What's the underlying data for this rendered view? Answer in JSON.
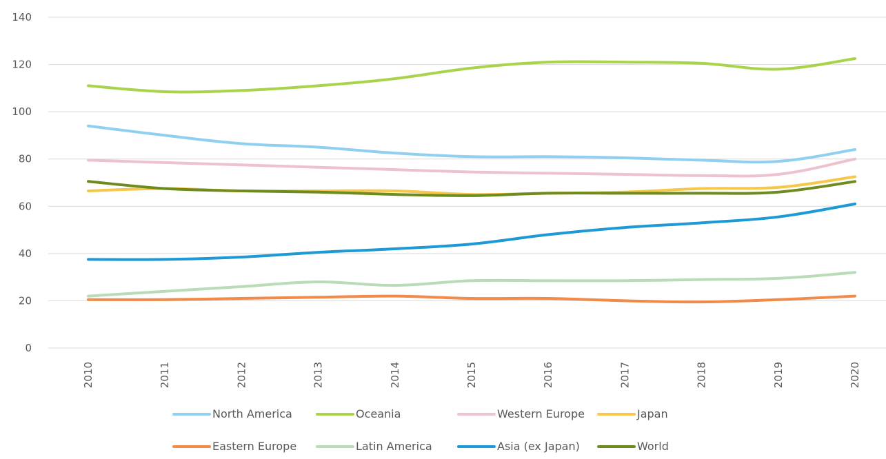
{
  "chart_data": {
    "type": "line",
    "title": "",
    "xlabel": "",
    "ylabel": "",
    "ylim": [
      0,
      140
    ],
    "yticks": [
      0,
      20,
      40,
      60,
      80,
      100,
      120,
      140
    ],
    "grid": "horizontal",
    "legend_position": "bottom",
    "categories": [
      "2010",
      "2011",
      "2012",
      "2013",
      "2014",
      "2015",
      "2016",
      "2017",
      "2018",
      "2019",
      "2020"
    ],
    "series": [
      {
        "name": "North America",
        "color": "#8fd0f0",
        "values": [
          94,
          90,
          86.5,
          85,
          82.5,
          81,
          81,
          80.5,
          79.5,
          79,
          84
        ]
      },
      {
        "name": "Oceania",
        "color": "#a9d34b",
        "values": [
          111,
          108.5,
          109,
          111,
          114,
          118.5,
          121,
          121,
          120.5,
          118,
          122.5
        ]
      },
      {
        "name": "Western Europe",
        "color": "#ecc2cc",
        "values": [
          79.5,
          78.5,
          77.5,
          76.5,
          75.5,
          74.5,
          74,
          73.5,
          73,
          73.5,
          80
        ]
      },
      {
        "name": "Japan",
        "color": "#f6c74a",
        "values": [
          66.5,
          67.5,
          66.5,
          66.5,
          66.5,
          65,
          65.5,
          66,
          67.5,
          68,
          72.5
        ]
      },
      {
        "name": "Eastern Europe",
        "color": "#f28a4a",
        "values": [
          20.5,
          20.5,
          21,
          21.5,
          22,
          21,
          21,
          20,
          19.5,
          20.5,
          22
        ]
      },
      {
        "name": "Latin America",
        "color": "#b9dbb6",
        "values": [
          22,
          24,
          26,
          28,
          26.5,
          28.5,
          28.5,
          28.5,
          29,
          29.5,
          32
        ]
      },
      {
        "name": "Asia (ex Japan)",
        "color": "#1d9ad6",
        "values": [
          37.5,
          37.5,
          38.5,
          40.5,
          42,
          44,
          48,
          51,
          53,
          55.5,
          61
        ]
      },
      {
        "name": "World",
        "color": "#6e8b1f",
        "values": [
          70.5,
          67.5,
          66.5,
          66,
          65,
          64.5,
          65.5,
          65.5,
          65.5,
          66,
          70.5
        ]
      }
    ]
  }
}
